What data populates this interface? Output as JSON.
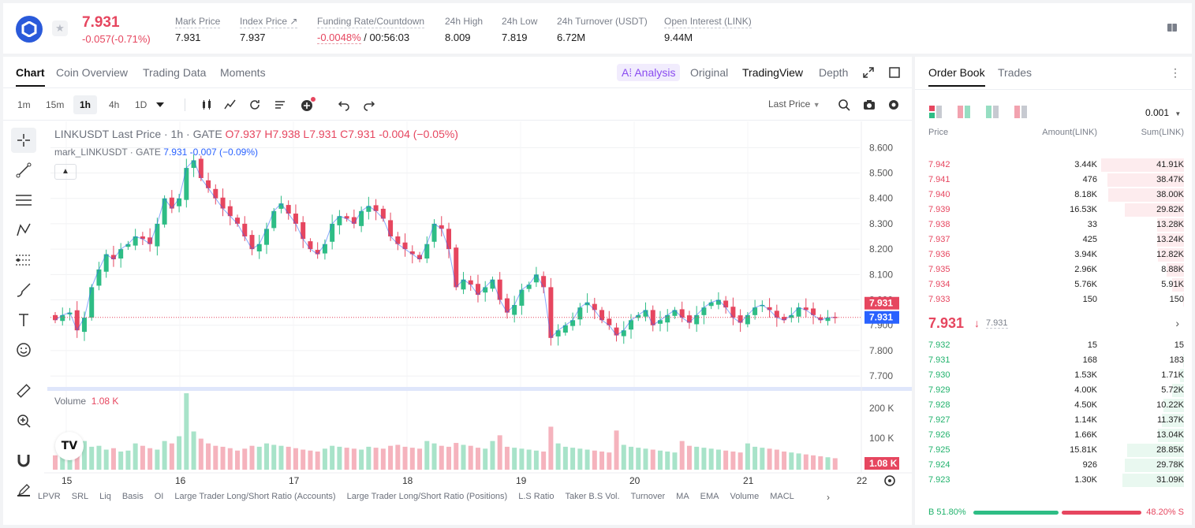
{
  "header": {
    "last_price": "7.931",
    "change": "-0.057(-0.71%)",
    "stats": [
      {
        "label": "Mark Price",
        "value": "7.931"
      },
      {
        "label": "Index Price ↗",
        "value": "7.937"
      },
      {
        "label": "Funding Rate/Countdown",
        "value_neg": "-0.0048%",
        "value": " / 00:56:03"
      },
      {
        "label": "24h High",
        "value": "8.009"
      },
      {
        "label": "24h Low",
        "value": "7.819"
      },
      {
        "label": "24h Turnover (USDT)",
        "value": "6.72M"
      },
      {
        "label": "Open Interest (LINK)",
        "value": "9.44M"
      }
    ]
  },
  "tabs": [
    "Chart",
    "Coin Overview",
    "Trading Data",
    "Moments"
  ],
  "view_tabs": {
    "ai": "A⁞ Analysis",
    "original": "Original",
    "tradingview": "TradingView",
    "depth": "Depth"
  },
  "intervals": [
    "1m",
    "15m",
    "1h",
    "4h",
    "1D"
  ],
  "selected_interval": "1h",
  "price_type": "Last Price",
  "chart_title": {
    "symbol": "LINKUSDT Last Price · 1h · GATE",
    "o": "O7.937",
    "h": "H7.938",
    "l": "L7.931",
    "c": "C7.931",
    "chg": "-0.004 (−0.05%)"
  },
  "mark_line": {
    "name": "mark_LINKUSDT · GATE",
    "value": "7.931",
    "chg": "-0.007 (−0.09%)"
  },
  "volume_label": {
    "name": "Volume",
    "value": "1.08 K"
  },
  "chart_data": {
    "type": "candlestick",
    "symbol": "LINKUSDT",
    "interval": "1h",
    "y_ticks": [
      "8.600",
      "8.500",
      "8.400",
      "8.300",
      "8.200",
      "8.100",
      "8.000",
      "7.900",
      "7.800",
      "7.700"
    ],
    "ylim": [
      7.66,
      8.66
    ],
    "x_ticks": [
      "15",
      "16",
      "17",
      "18",
      "19",
      "20",
      "21",
      "22"
    ],
    "volume_ticks": [
      "200 K",
      "100 K"
    ],
    "last_price_tag": "7.931",
    "mark_price_tag": "7.931",
    "volume_tag": "1.08 K",
    "bull_color": "#2ebd85",
    "bear_color": "#e6465f",
    "close_path": [
      7.92,
      7.94,
      7.95,
      7.88,
      7.93,
      8.05,
      8.12,
      8.18,
      8.16,
      8.2,
      8.22,
      8.25,
      8.24,
      8.22,
      8.3,
      8.4,
      8.36,
      8.4,
      8.52,
      8.55,
      8.48,
      8.44,
      8.4,
      8.36,
      8.33,
      8.3,
      8.25,
      8.2,
      8.22,
      8.28,
      8.35,
      8.38,
      8.34,
      8.3,
      8.24,
      8.2,
      8.18,
      8.22,
      8.3,
      8.33,
      8.32,
      8.3,
      8.35,
      8.37,
      8.35,
      8.32,
      8.25,
      8.22,
      8.2,
      8.18,
      8.16,
      8.22,
      8.3,
      8.28,
      8.2,
      8.05,
      8.08,
      8.06,
      8.02,
      8.05,
      8.08,
      8.0,
      7.95,
      7.98,
      8.04,
      8.06,
      8.1,
      8.05,
      7.85,
      7.88,
      7.9,
      7.92,
      7.97,
      7.99,
      7.96,
      7.92,
      7.9,
      7.86,
      7.88,
      7.92,
      7.94,
      7.96,
      7.9,
      7.92,
      7.94,
      7.96,
      7.93,
      7.91,
      7.94,
      7.97,
      7.99,
      8.0,
      7.97,
      7.93,
      7.91,
      7.94,
      7.97,
      7.98,
      7.96,
      7.93,
      7.92,
      7.94,
      7.97,
      7.96,
      7.94,
      7.92,
      7.93,
      7.931
    ],
    "volume_path": [
      30,
      35,
      40,
      55,
      60,
      48,
      50,
      42,
      45,
      38,
      40,
      55,
      50,
      45,
      42,
      60,
      55,
      70,
      160,
      80,
      65,
      55,
      50,
      48,
      45,
      40,
      44,
      50,
      48,
      55,
      52,
      50,
      48,
      45,
      42,
      40,
      38,
      44,
      50,
      48,
      46,
      44,
      42,
      48,
      46,
      44,
      50,
      52,
      48,
      46,
      44,
      60,
      55,
      50,
      48,
      56,
      52,
      50,
      46,
      44,
      60,
      72,
      48,
      46,
      44,
      42,
      40,
      38,
      90,
      55,
      48,
      46,
      44,
      42,
      40,
      38,
      36,
      82,
      52,
      48,
      46,
      44,
      42,
      40,
      38,
      36,
      60,
      50,
      48,
      46,
      44,
      42,
      40,
      38,
      36,
      55,
      48,
      46,
      44,
      42,
      38,
      36,
      34,
      32,
      30,
      28,
      26,
      24
    ]
  },
  "indicators": [
    "LPVR",
    "SRL",
    "Liq",
    "Basis",
    "OI",
    "Large Trader Long/Short Ratio (Accounts)",
    "Large Trader Long/Short Ratio (Positions)",
    "L.S Ratio",
    "Taker B.S Vol.",
    "Turnover",
    "MA",
    "EMA",
    "Volume",
    "MACL"
  ],
  "order_book": {
    "tabs": [
      "Order Book",
      "Trades"
    ],
    "precision": "0.001",
    "headers": {
      "price": "Price",
      "amount": "Amount(LINK)",
      "sum": "Sum(LINK)"
    },
    "asks": [
      {
        "price": "7.942",
        "amount": "3.44K",
        "sum": "41.91K",
        "depth": 1.0
      },
      {
        "price": "7.941",
        "amount": "476",
        "sum": "38.47K",
        "depth": 0.92
      },
      {
        "price": "7.940",
        "amount": "8.18K",
        "sum": "38.00K",
        "depth": 0.91
      },
      {
        "price": "7.939",
        "amount": "16.53K",
        "sum": "29.82K",
        "depth": 0.71
      },
      {
        "price": "7.938",
        "amount": "33",
        "sum": "13.28K",
        "depth": 0.32
      },
      {
        "price": "7.937",
        "amount": "425",
        "sum": "13.24K",
        "depth": 0.32
      },
      {
        "price": "7.936",
        "amount": "3.94K",
        "sum": "12.82K",
        "depth": 0.31
      },
      {
        "price": "7.935",
        "amount": "2.96K",
        "sum": "8.88K",
        "depth": 0.21
      },
      {
        "price": "7.934",
        "amount": "5.76K",
        "sum": "5.91K",
        "depth": 0.14
      },
      {
        "price": "7.933",
        "amount": "150",
        "sum": "150",
        "depth": 0.01
      }
    ],
    "mid": {
      "price": "7.931",
      "arrow": "🡓",
      "mark": "7.931"
    },
    "bids": [
      {
        "price": "7.932",
        "amount": "15",
        "sum": "15",
        "depth": 0.0
      },
      {
        "price": "7.931",
        "amount": "168",
        "sum": "183",
        "depth": 0.01
      },
      {
        "price": "7.930",
        "amount": "1.53K",
        "sum": "1.71K",
        "depth": 0.05
      },
      {
        "price": "7.929",
        "amount": "4.00K",
        "sum": "5.72K",
        "depth": 0.14
      },
      {
        "price": "7.928",
        "amount": "4.50K",
        "sum": "10.22K",
        "depth": 0.25
      },
      {
        "price": "7.927",
        "amount": "1.14K",
        "sum": "11.37K",
        "depth": 0.27
      },
      {
        "price": "7.926",
        "amount": "1.66K",
        "sum": "13.04K",
        "depth": 0.31
      },
      {
        "price": "7.925",
        "amount": "15.81K",
        "sum": "28.85K",
        "depth": 0.69
      },
      {
        "price": "7.924",
        "amount": "926",
        "sum": "29.78K",
        "depth": 0.71
      },
      {
        "price": "7.923",
        "amount": "1.30K",
        "sum": "31.09K",
        "depth": 0.74
      }
    ],
    "buy_ratio": "B 51.80%",
    "sell_ratio": "48.20% S",
    "buy_fraction": 0.518
  }
}
